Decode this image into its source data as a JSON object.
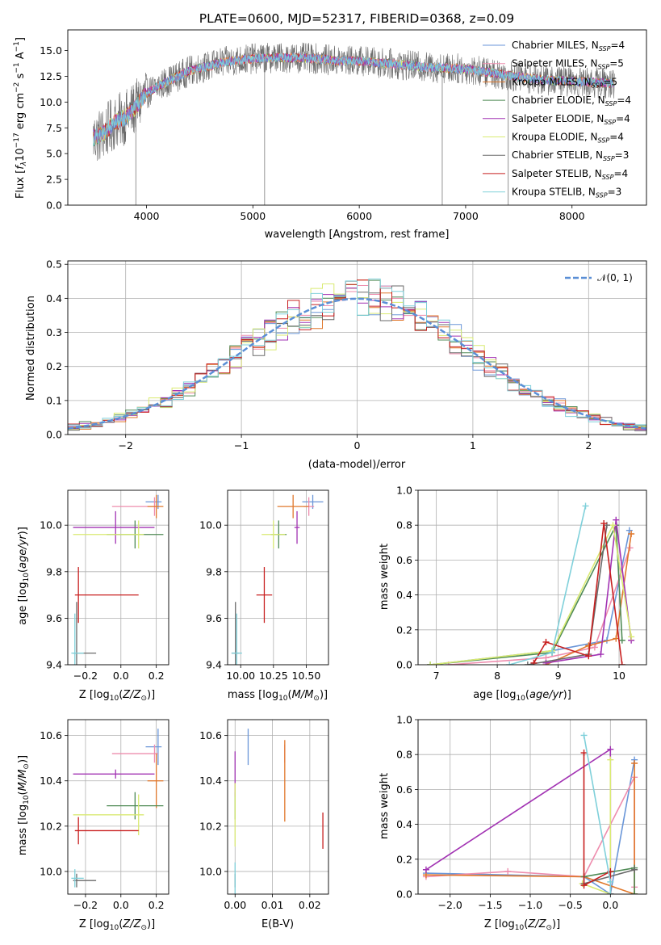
{
  "colors": {
    "chabrier_miles": "#6a96d8",
    "salpeter_miles": "#ee8dae",
    "kroupa_miles": "#e0782c",
    "chabrier_elodie": "#4f8a55",
    "salpeter_elodie": "#a233b3",
    "kroupa_elodie": "#d9ea72",
    "chabrier_stelib": "#6a6a6a",
    "salpeter_stelib": "#c81f1f",
    "kroupa_stelib": "#7fd0da",
    "normal": "#5b8fd6"
  },
  "chart_data": [
    {
      "type": "line",
      "title": "PLATE=0600, MJD=52317, FIBERID=0368, z=0.09",
      "xlabel": "wavelength [Angstrom, rest frame]",
      "ylabel": "Flux [f_λ 10^-17 erg cm^-2 s^-1 A^-1]",
      "xlim": [
        3260,
        8700
      ],
      "ylim": [
        0,
        17
      ],
      "xticks": [
        "4000",
        "5000",
        "6000",
        "7000",
        "8000"
      ],
      "yticks": [
        "0.0",
        "2.5",
        "5.0",
        "7.5",
        "10.0",
        "12.5",
        "15.0"
      ],
      "grid": false,
      "legend_position": "right",
      "legend": [
        {
          "label": "Chabrier MILES, N_SSP=4",
          "prefix": "Chabrier MILES, N",
          "sub": "SSP",
          "suffix": "=4"
        },
        {
          "label": "Salpeter MILES, N_SSP=5",
          "prefix": "Salpeter MILES, N",
          "sub": "SSP",
          "suffix": "=5"
        },
        {
          "label": "Kroupa MILES, N_SSP=5",
          "prefix": "Kroupa MILES, N",
          "sub": "SSP",
          "suffix": "=5"
        },
        {
          "label": "Chabrier ELODIE, N_SSP=4",
          "prefix": "Chabrier ELODIE, N",
          "sub": "SSP",
          "suffix": "=4"
        },
        {
          "label": "Salpeter ELODIE, N_SSP=4",
          "prefix": "Salpeter ELODIE, N",
          "sub": "SSP",
          "suffix": "=4"
        },
        {
          "label": "Kroupa ELODIE, N_SSP=4",
          "prefix": "Kroupa ELODIE, N",
          "sub": "SSP",
          "suffix": "=4"
        },
        {
          "label": "Chabrier STELIB, N_SSP=3",
          "prefix": "Chabrier STELIB, N",
          "sub": "SSP",
          "suffix": "=3"
        },
        {
          "label": "Salpeter STELIB, N_SSP=4",
          "prefix": "Salpeter STELIB, N",
          "sub": "SSP",
          "suffix": "=4"
        },
        {
          "label": "Kroupa STELIB, N_SSP=3",
          "prefix": "Kroupa STELIB, N",
          "sub": "SSP",
          "suffix": "=3"
        }
      ],
      "continuum": {
        "x": [
          3500,
          3600,
          3700,
          3800,
          3900,
          4000,
          4100,
          4200,
          4300,
          4400,
          4500,
          4600,
          4700,
          4800,
          4900,
          5000,
          5200,
          5400,
          5600,
          5800,
          6000,
          6200,
          6400,
          6600,
          6800,
          7000,
          7200,
          7400,
          7600,
          7800,
          8000,
          8200,
          8400
        ],
        "y": [
          6.5,
          7.0,
          8.0,
          8.5,
          9.5,
          10.8,
          11.5,
          12.0,
          12.5,
          13.0,
          13.3,
          13.5,
          13.8,
          14.0,
          14.1,
          14.2,
          14.3,
          14.3,
          14.2,
          14.0,
          14.0,
          13.8,
          13.6,
          13.4,
          13.3,
          13.2,
          12.9,
          12.6,
          12.3,
          12.1,
          12.0,
          11.9,
          11.8
        ]
      },
      "spikes": [
        {
          "x": 3900,
          "y": 0.0
        },
        {
          "x": 5110,
          "y": 0.0
        },
        {
          "x": 6780,
          "y": 0.0
        },
        {
          "x": 7400,
          "y": 0.0
        }
      ]
    },
    {
      "type": "bar",
      "xlabel": "(data-model)/error",
      "ylabel": "Normed distribution",
      "xlim": [
        -2.5,
        2.5
      ],
      "ylim": [
        0,
        0.51
      ],
      "xticks": [
        "−2",
        "−1",
        "0",
        "1",
        "2"
      ],
      "yticks": [
        "0.0",
        "0.1",
        "0.2",
        "0.3",
        "0.4",
        "0.5"
      ],
      "grid": true,
      "legend_position": "top-right",
      "legend": [
        {
          "label": "𝒩(0, 1)"
        }
      ],
      "bin_width": 0.1,
      "reference_curve": "standard normal pdf, dashed"
    },
    {
      "type": "scatter",
      "xlabel": "Z [log10(Z/Z⊙)]",
      "ylabel": "age [log10(age/yr)]",
      "xlim": [
        -0.3,
        0.27
      ],
      "ylim": [
        9.4,
        10.15
      ],
      "xticks": [
        "−0.2",
        "0.0",
        "0.2"
      ],
      "yticks": [
        "9.4",
        "9.6",
        "9.8",
        "10.0"
      ],
      "grid": true,
      "errorbars": [
        {
          "series": "chabrier_miles",
          "x": 0.21,
          "xerr": [
            0.07,
            0.02
          ],
          "y": 10.1,
          "yerr": 0.03
        },
        {
          "series": "salpeter_miles",
          "x": 0.19,
          "xerr": [
            0.24,
            0.02
          ],
          "y": 10.08,
          "yerr": 0.04
        },
        {
          "series": "kroupa_miles",
          "x": 0.2,
          "xerr": [
            0.05,
            0.04
          ],
          "y": 10.08,
          "yerr": 0.05
        },
        {
          "series": "chabrier_elodie",
          "x": 0.08,
          "xerr": [
            0.16,
            0.16
          ],
          "y": 9.96,
          "yerr": 0.06
        },
        {
          "series": "salpeter_elodie",
          "x": -0.03,
          "xerr": [
            0.24,
            0.22
          ],
          "y": 9.99,
          "yerr": 0.07
        },
        {
          "series": "kroupa_elodie",
          "x": 0.1,
          "xerr": [
            0.37,
            0.03
          ],
          "y": 9.96,
          "yerr": 0.06
        },
        {
          "series": "chabrier_stelib",
          "x": -0.25,
          "xerr": [
            0.02,
            0.11
          ],
          "y": 9.45,
          "yerr": 0.22
        },
        {
          "series": "salpeter_stelib",
          "x": -0.24,
          "xerr": [
            0.02,
            0.34
          ],
          "y": 9.7,
          "yerr": 0.12
        },
        {
          "series": "kroupa_stelib",
          "x": -0.26,
          "xerr": [
            0.02,
            0.05
          ],
          "y": 9.45,
          "yerr": 0.17
        }
      ]
    },
    {
      "type": "scatter",
      "xlabel": "mass [log10(M/M⊙)]",
      "ylabel": "",
      "xlim": [
        9.9,
        10.67
      ],
      "ylim": [
        9.4,
        10.15
      ],
      "xticks": [
        "10.00",
        "10.25",
        "10.50"
      ],
      "yticks": [
        "9.4",
        "9.6",
        "9.8",
        "10.0"
      ],
      "grid": true,
      "errorbars": [
        {
          "series": "chabrier_miles",
          "x": 10.55,
          "xerr": 0.08,
          "y": 10.1,
          "yerr": 0.03
        },
        {
          "series": "salpeter_miles",
          "x": 10.52,
          "xerr": 0.04,
          "y": 10.08,
          "yerr": 0.04
        },
        {
          "series": "kroupa_miles",
          "x": 10.4,
          "xerr": 0.12,
          "y": 10.08,
          "yerr": 0.05
        },
        {
          "series": "chabrier_elodie",
          "x": 10.29,
          "xerr": 0.06,
          "y": 9.96,
          "yerr": 0.06
        },
        {
          "series": "salpeter_elodie",
          "x": 10.43,
          "xerr": 0.02,
          "y": 9.99,
          "yerr": 0.07
        },
        {
          "series": "kroupa_elodie",
          "x": 10.25,
          "xerr": 0.09,
          "y": 9.96,
          "yerr": 0.06
        },
        {
          "series": "chabrier_stelib",
          "x": 9.96,
          "xerr": 0.03,
          "y": 9.45,
          "yerr": 0.22
        },
        {
          "series": "salpeter_stelib",
          "x": 10.18,
          "xerr": 0.06,
          "y": 9.7,
          "yerr": 0.12
        },
        {
          "series": "kroupa_stelib",
          "x": 9.97,
          "xerr": 0.04,
          "y": 9.45,
          "yerr": 0.17
        }
      ]
    },
    {
      "type": "line",
      "xlabel": "age [log10(age/yr)]",
      "ylabel": "mass weight",
      "xlim": [
        6.7,
        10.45
      ],
      "ylim": [
        0,
        1.0
      ],
      "xticks": [
        "7",
        "8",
        "9",
        "10"
      ],
      "yticks": [
        "0.0",
        "0.2",
        "0.4",
        "0.6",
        "0.8",
        "1.0"
      ],
      "grid": true,
      "series": [
        {
          "name": "chabrier_miles",
          "x": [
            6.9,
            8.9,
            9.8,
            10.17
          ],
          "y": [
            0.0,
            0.08,
            0.14,
            0.77
          ]
        },
        {
          "name": "salpeter_miles",
          "x": [
            7.2,
            8.8,
            9.6,
            10.18
          ],
          "y": [
            0.0,
            0.04,
            0.1,
            0.67
          ]
        },
        {
          "name": "kroupa_miles",
          "x": [
            8.8,
            9.5,
            9.95,
            10.2
          ],
          "y": [
            0.0,
            0.11,
            0.15,
            0.75
          ]
        },
        {
          "name": "chabrier_elodie",
          "x": [
            6.9,
            8.9,
            9.95,
            10.05
          ],
          "y": [
            0.0,
            0.07,
            0.8,
            0.14
          ]
        },
        {
          "name": "salpeter_elodie",
          "x": [
            8.8,
            9.7,
            9.95,
            10.2
          ],
          "y": [
            0.01,
            0.06,
            0.83,
            0.14
          ]
        },
        {
          "name": "kroupa_elodie",
          "x": [
            6.9,
            8.9,
            9.9,
            10.2
          ],
          "y": [
            0.0,
            0.08,
            0.8,
            0.16
          ]
        },
        {
          "name": "chabrier_stelib",
          "x": [
            8.5,
            9.5,
            9.8
          ],
          "y": [
            0.0,
            0.06,
            0.8
          ]
        },
        {
          "name": "salpeter_stelib",
          "x": [
            8.6,
            8.8,
            9.5,
            9.75,
            10.05
          ],
          "y": [
            0.01,
            0.13,
            0.05,
            0.81,
            0.0
          ]
        },
        {
          "name": "kroupa_stelib",
          "x": [
            8.2,
            8.9,
            9.45
          ],
          "y": [
            0.0,
            0.07,
            0.91
          ]
        }
      ]
    },
    {
      "type": "scatter",
      "xlabel": "Z [log10(Z/Z⊙)]",
      "ylabel": "mass [log10(M/M⊙)]",
      "xlim": [
        -0.3,
        0.27
      ],
      "ylim": [
        9.9,
        10.67
      ],
      "xticks": [
        "−0.2",
        "0.0",
        "0.2"
      ],
      "yticks": [
        "10.0",
        "10.2",
        "10.4",
        "10.6"
      ],
      "grid": true,
      "errorbars": [
        {
          "series": "chabrier_miles",
          "x": 0.21,
          "xerr": [
            0.07,
            0.02
          ],
          "y": 10.55,
          "yerr": 0.08
        },
        {
          "series": "salpeter_miles",
          "x": 0.19,
          "xerr": [
            0.24,
            0.02
          ],
          "y": 10.52,
          "yerr": 0.04
        },
        {
          "series": "kroupa_miles",
          "x": 0.2,
          "xerr": [
            0.05,
            0.04
          ],
          "y": 10.4,
          "yerr": 0.12
        },
        {
          "series": "chabrier_elodie",
          "x": 0.08,
          "xerr": [
            0.16,
            0.16
          ],
          "y": 10.29,
          "yerr": 0.06
        },
        {
          "series": "salpeter_elodie",
          "x": -0.03,
          "xerr": [
            0.24,
            0.22
          ],
          "y": 10.43,
          "yerr": 0.02
        },
        {
          "series": "kroupa_elodie",
          "x": 0.1,
          "xerr": [
            0.37,
            0.03
          ],
          "y": 10.25,
          "yerr": 0.09
        },
        {
          "series": "chabrier_stelib",
          "x": -0.25,
          "xerr": [
            0.02,
            0.11
          ],
          "y": 9.96,
          "yerr": 0.03
        },
        {
          "series": "salpeter_stelib",
          "x": -0.24,
          "xerr": [
            0.02,
            0.34
          ],
          "y": 10.18,
          "yerr": 0.06
        },
        {
          "series": "kroupa_stelib",
          "x": -0.26,
          "xerr": [
            0.02,
            0.05
          ],
          "y": 9.97,
          "yerr": 0.04
        }
      ]
    },
    {
      "type": "scatter",
      "xlabel": "E(B-V)",
      "ylabel": "",
      "xlim": [
        -0.002,
        0.025
      ],
      "ylim": [
        9.9,
        10.67
      ],
      "xticks": [
        "0.00",
        "0.01",
        "0.02"
      ],
      "yticks": [
        "10.0",
        "10.2",
        "10.4",
        "10.6"
      ],
      "grid": true,
      "errorbars": [
        {
          "series": "chabrier_miles",
          "x": 0.0035,
          "y": 10.55,
          "yerr": 0.08
        },
        {
          "series": "salpeter_miles",
          "x": 0.0133,
          "y": 10.52,
          "yerr": 0.04
        },
        {
          "series": "kroupa_miles",
          "x": 0.0133,
          "y": 10.4,
          "yerr": 0.18
        },
        {
          "series": "chabrier_elodie",
          "x": 0.0,
          "y": 10.29,
          "yerr": 0.06
        },
        {
          "series": "salpeter_elodie",
          "x": 0.0,
          "y": 10.43,
          "yerr": 0.1
        },
        {
          "series": "kroupa_elodie",
          "x": 0.0,
          "y": 10.25,
          "yerr": 0.14
        },
        {
          "series": "chabrier_stelib",
          "x": 0.0,
          "y": 9.96,
          "yerr": 0.03
        },
        {
          "series": "salpeter_stelib",
          "x": 0.0235,
          "y": 10.18,
          "yerr": 0.08
        },
        {
          "series": "kroupa_stelib",
          "x": 0.0,
          "y": 9.97,
          "yerr": 0.07
        }
      ]
    },
    {
      "type": "line",
      "xlabel": "Z [log10(Z/Z⊙)]",
      "ylabel": "mass weight",
      "xlim": [
        -2.4,
        0.45
      ],
      "ylim": [
        0,
        1.0
      ],
      "xticks": [
        "−2.0",
        "−1.5",
        "−1.0",
        "−0.5",
        "0.0"
      ],
      "yticks": [
        "0.0",
        "0.2",
        "0.4",
        "0.6",
        "0.8",
        "1.0"
      ],
      "grid": true,
      "series": [
        {
          "name": "chabrier_miles",
          "x": [
            -2.3,
            -0.33,
            0.0,
            0.3
          ],
          "y": [
            0.12,
            0.1,
            0.0,
            0.77
          ]
        },
        {
          "name": "salpeter_miles",
          "x": [
            -2.3,
            -1.28,
            -0.33,
            0.3,
            0.3
          ],
          "y": [
            0.1,
            0.13,
            0.1,
            0.67,
            0.04
          ]
        },
        {
          "name": "kroupa_miles",
          "x": [
            -2.3,
            -0.33,
            0.3,
            0.3
          ],
          "y": [
            0.11,
            0.1,
            0.0,
            0.75
          ]
        },
        {
          "name": "chabrier_elodie",
          "x": [
            -0.33,
            0.3,
            0.3
          ],
          "y": [
            0.1,
            0.15,
            0.0
          ]
        },
        {
          "name": "salpeter_elodie",
          "x": [
            -2.3,
            0.0,
            0.0
          ],
          "y": [
            0.14,
            0.83,
            0.0
          ]
        },
        {
          "name": "kroupa_elodie",
          "x": [
            -0.35,
            0.0,
            0.0
          ],
          "y": [
            0.06,
            0.0,
            0.77
          ]
        },
        {
          "name": "chabrier_stelib",
          "x": [
            -0.33,
            0.3
          ],
          "y": [
            0.06,
            0.14
          ]
        },
        {
          "name": "salpeter_stelib",
          "x": [
            -0.33,
            -0.33,
            0.0,
            0.0
          ],
          "y": [
            0.81,
            0.05,
            0.13,
            0.0
          ]
        },
        {
          "name": "kroupa_stelib",
          "x": [
            -0.33,
            0.0,
            0.0
          ],
          "y": [
            0.91,
            0.07,
            0.0
          ]
        }
      ]
    }
  ]
}
